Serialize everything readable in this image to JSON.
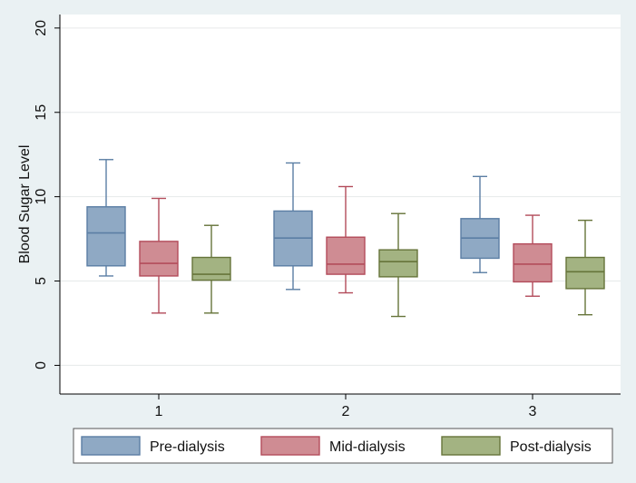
{
  "chart_data": {
    "type": "box",
    "ylabel": "Blood Sugar Level",
    "xlabel": "",
    "ylim": [
      -1.7,
      20.8
    ],
    "yticks": [
      0,
      5,
      10,
      15,
      20
    ],
    "grid": true,
    "legend_position": "bottom",
    "categories": [
      "1",
      "2",
      "3"
    ],
    "series": [
      {
        "name": "Pre-dialysis",
        "color": "#5b7ea4",
        "fill": "#8fa9c4",
        "boxes": [
          {
            "min": 5.3,
            "q1": 5.9,
            "median": 7.85,
            "q3": 9.4,
            "max": 12.2
          },
          {
            "min": 4.5,
            "q1": 5.9,
            "median": 7.55,
            "q3": 9.15,
            "max": 12.0
          },
          {
            "min": 5.5,
            "q1": 6.35,
            "median": 7.55,
            "q3": 8.7,
            "max": 11.2
          }
        ]
      },
      {
        "name": "Mid-dialysis",
        "color": "#b34c5b",
        "fill": "#cf8c93",
        "boxes": [
          {
            "min": 3.1,
            "q1": 5.3,
            "median": 6.05,
            "q3": 7.35,
            "max": 9.9
          },
          {
            "min": 4.3,
            "q1": 5.4,
            "median": 6.0,
            "q3": 7.6,
            "max": 10.6
          },
          {
            "min": 4.1,
            "q1": 4.95,
            "median": 6.0,
            "q3": 7.2,
            "max": 8.9
          }
        ]
      },
      {
        "name": "Post-dialysis",
        "color": "#66743a",
        "fill": "#a3b382",
        "boxes": [
          {
            "min": 3.1,
            "q1": 5.05,
            "median": 5.4,
            "q3": 6.4,
            "max": 8.3
          },
          {
            "min": 2.9,
            "q1": 5.25,
            "median": 6.15,
            "q3": 6.85,
            "max": 9.0
          },
          {
            "min": 3.0,
            "q1": 4.55,
            "median": 5.55,
            "q3": 6.4,
            "max": 8.6
          }
        ]
      }
    ]
  }
}
